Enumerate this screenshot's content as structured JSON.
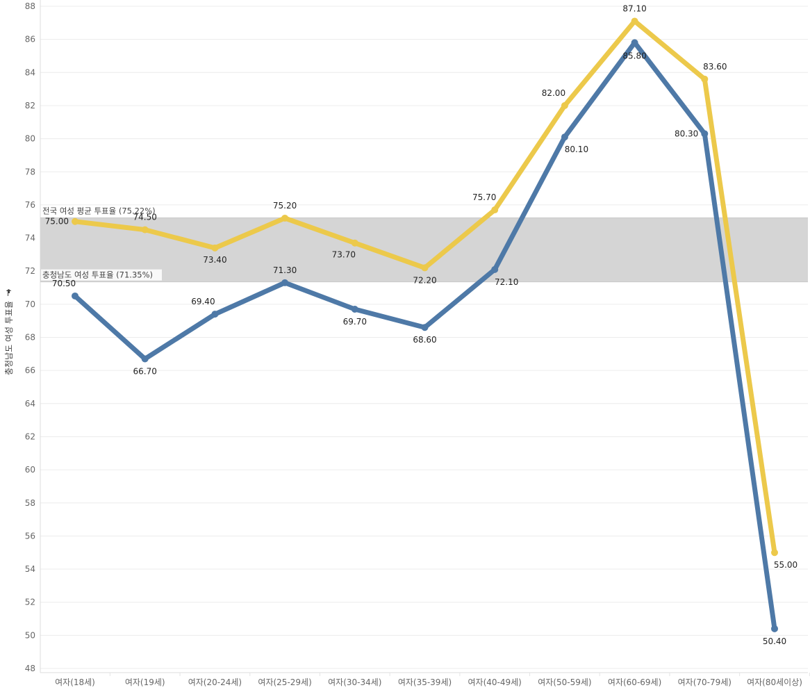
{
  "chart_data": {
    "type": "line",
    "ylabel": "충청남도 여성 투표율",
    "ylim": [
      48,
      88
    ],
    "yticks": [
      48,
      50,
      52,
      54,
      56,
      58,
      60,
      62,
      64,
      66,
      68,
      70,
      72,
      74,
      76,
      78,
      80,
      82,
      84,
      86,
      88
    ],
    "categories": [
      "여자(18세)",
      "여자(19세)",
      "여자(20-24세)",
      "여자(25-29세)",
      "여자(30-34세)",
      "여자(35-39세)",
      "여자(40-49세)",
      "여자(50-59세)",
      "여자(60-69세)",
      "여자(70-79세)",
      "여자(80세이상)"
    ],
    "series": [
      {
        "key": "national",
        "color": "#ECC94B",
        "values": [
          75.0,
          74.5,
          73.4,
          75.2,
          73.7,
          72.2,
          75.7,
          82.0,
          87.1,
          83.6,
          55.0
        ],
        "labels": [
          "75.00",
          "74.50",
          "73.40",
          "75.20",
          "73.70",
          "72.20",
          "75.70",
          "82.00",
          "87.10",
          "83.60",
          "55.00"
        ]
      },
      {
        "key": "chungnam",
        "color": "#4E79A7",
        "values": [
          70.5,
          66.7,
          69.4,
          71.3,
          69.7,
          68.6,
          72.1,
          80.1,
          85.8,
          80.3,
          50.4
        ],
        "labels": [
          "70.50",
          "66.70",
          "69.40",
          "71.30",
          "69.70",
          "68.60",
          "72.10",
          "80.10",
          "85.80",
          "80.30",
          "50.40"
        ]
      }
    ],
    "reference_band": {
      "color": "#D5D5D5",
      "upper": {
        "value": 75.22,
        "label": "전국 여성 평균 투표율 (75.22%)"
      },
      "lower": {
        "value": 71.35,
        "label": "충청남도 여성 투표율 (71.35%)"
      }
    },
    "grid": true,
    "legend": "none"
  }
}
